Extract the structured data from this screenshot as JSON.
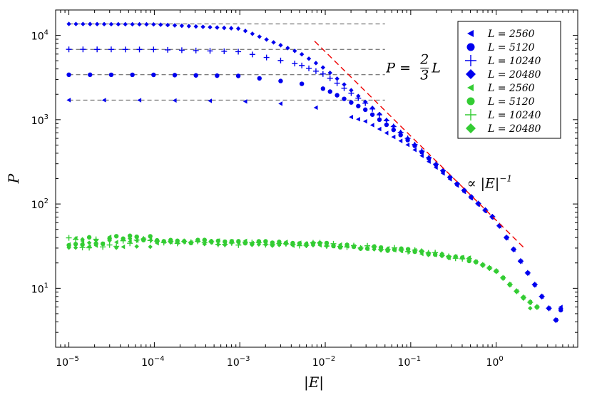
{
  "chart_data": {
    "type": "scatter",
    "xscale": "log",
    "yscale": "log",
    "xlim": [
      7e-06,
      9
    ],
    "ylim": [
      2,
      20000
    ],
    "xlabel": "|E|",
    "ylabel": "P",
    "xticks": [
      {
        "value": 1e-05,
        "base": "10",
        "exp": "−5"
      },
      {
        "value": 0.0001,
        "base": "10",
        "exp": "−4"
      },
      {
        "value": 0.001,
        "base": "10",
        "exp": "−3"
      },
      {
        "value": 0.01,
        "base": "10",
        "exp": "−2"
      },
      {
        "value": 0.1,
        "base": "10",
        "exp": "−1"
      },
      {
        "value": 1,
        "base": "10",
        "exp": "0"
      }
    ],
    "yticks": [
      {
        "value": 10,
        "base": "10",
        "exp": "1"
      },
      {
        "value": 100,
        "base": "10",
        "exp": "2"
      },
      {
        "value": 1000,
        "base": "10",
        "exp": "3"
      },
      {
        "value": 10000,
        "base": "10",
        "exp": "4"
      }
    ],
    "grid": false,
    "legend_position": "top-right",
    "colors": {
      "blue": "#0000ee",
      "green": "#33cc33",
      "dashed": "#555555",
      "fit": "#ee0000"
    },
    "series": [
      {
        "name": "L = 2560",
        "color": "blue",
        "marker": "triangle-left",
        "plateau": 1707,
        "Ec": 0.018,
        "points": [
          [
            1e-05,
            1707
          ],
          [
            0.0001,
            1700
          ],
          [
            0.001,
            1660
          ],
          [
            0.005,
            1500
          ],
          [
            0.01,
            1330
          ],
          [
            0.03,
            950
          ],
          [
            0.1,
            480
          ],
          [
            0.3,
            190
          ],
          [
            1,
            63
          ],
          [
            5,
            4.2
          ],
          [
            5.7,
            6.0
          ]
        ]
      },
      {
        "name": "L = 5120",
        "color": "blue",
        "marker": "circle",
        "plateau": 3413,
        "Ec": 0.009,
        "points": [
          [
            1e-05,
            3413
          ],
          [
            0.0001,
            3400
          ],
          [
            0.001,
            3300
          ],
          [
            0.005,
            2700
          ],
          [
            0.01,
            2300
          ],
          [
            0.03,
            1300
          ],
          [
            0.1,
            540
          ],
          [
            0.3,
            200
          ],
          [
            1,
            64
          ],
          [
            5,
            4.2
          ],
          [
            5.7,
            5.5
          ]
        ]
      },
      {
        "name": "L = 10240",
        "color": "blue",
        "marker": "plus",
        "plateau": 6827,
        "Ec": 0.0045,
        "points": [
          [
            1e-05,
            6827
          ],
          [
            0.0001,
            6800
          ],
          [
            0.001,
            6400
          ],
          [
            0.005,
            4500
          ],
          [
            0.01,
            3400
          ],
          [
            0.03,
            1550
          ],
          [
            0.1,
            560
          ],
          [
            0.3,
            200
          ],
          [
            1,
            64
          ],
          [
            5,
            4.2
          ],
          [
            5.7,
            5.8
          ]
        ]
      },
      {
        "name": "L = 20480",
        "color": "blue",
        "marker": "diamond",
        "plateau": 13653,
        "Ec": 0.00225,
        "points": [
          [
            1e-05,
            13653
          ],
          [
            0.0001,
            13500
          ],
          [
            0.001,
            12000
          ],
          [
            0.005,
            6200
          ],
          [
            0.01,
            4000
          ],
          [
            0.03,
            1600
          ],
          [
            0.1,
            560
          ],
          [
            0.3,
            200
          ],
          [
            1,
            64
          ],
          [
            5,
            4.2
          ]
        ]
      },
      {
        "name": "L = 2560",
        "color": "green",
        "marker": "triangle-left",
        "points": [
          [
            1e-05,
            36
          ],
          [
            0.0001,
            36
          ],
          [
            0.001,
            35
          ],
          [
            0.01,
            33
          ],
          [
            0.1,
            28
          ],
          [
            0.5,
            22
          ],
          [
            1,
            16
          ],
          [
            2,
            8
          ],
          [
            3,
            6
          ]
        ]
      },
      {
        "name": "L = 5120",
        "color": "green",
        "marker": "circle",
        "points": [
          [
            1e-05,
            37
          ],
          [
            0.0001,
            37
          ],
          [
            0.001,
            35
          ],
          [
            0.01,
            33
          ],
          [
            0.1,
            28
          ],
          [
            0.5,
            22
          ],
          [
            1,
            16
          ],
          [
            2,
            8
          ],
          [
            3,
            6
          ]
        ]
      },
      {
        "name": "L = 10240",
        "color": "green",
        "marker": "plus",
        "points": [
          [
            1e-05,
            35
          ],
          [
            0.0001,
            35
          ],
          [
            0.001,
            34
          ],
          [
            0.01,
            33
          ],
          [
            0.1,
            28
          ],
          [
            0.5,
            22
          ],
          [
            1,
            16
          ],
          [
            2,
            8
          ],
          [
            3,
            6
          ]
        ]
      },
      {
        "name": "L = 20480",
        "color": "green",
        "marker": "diamond",
        "points": [
          [
            1e-05,
            34
          ],
          [
            0.0001,
            35
          ],
          [
            0.001,
            34
          ],
          [
            0.01,
            33
          ],
          [
            0.1,
            28
          ],
          [
            0.5,
            22
          ],
          [
            1,
            16
          ],
          [
            2,
            8
          ],
          [
            2.5,
            5.8
          ],
          [
            3,
            6
          ]
        ]
      }
    ],
    "reference_lines": [
      {
        "kind": "dashed",
        "y": 1707,
        "x_start": 1e-05,
        "x_end": 0.05
      },
      {
        "kind": "dashed",
        "y": 3413,
        "x_start": 1e-05,
        "x_end": 0.05
      },
      {
        "kind": "dashed",
        "y": 6827,
        "x_start": 1e-05,
        "x_end": 0.05
      },
      {
        "kind": "dashed",
        "y": 13653,
        "x_start": 1e-05,
        "x_end": 0.05
      }
    ],
    "fit_line": {
      "kind": "dashed",
      "coefficient": 64,
      "slope": -1,
      "x_start": 0.0075,
      "x_end": 2.2
    },
    "annotations": {
      "plateau": {
        "lhs": "P =",
        "num": "2",
        "den": "3",
        "rhs": "L",
        "x": 0.06,
        "y": 3500
      },
      "fit": {
        "text": "∝ |E|",
        "exp": "−1",
        "x": 0.75,
        "y": 150
      }
    }
  }
}
